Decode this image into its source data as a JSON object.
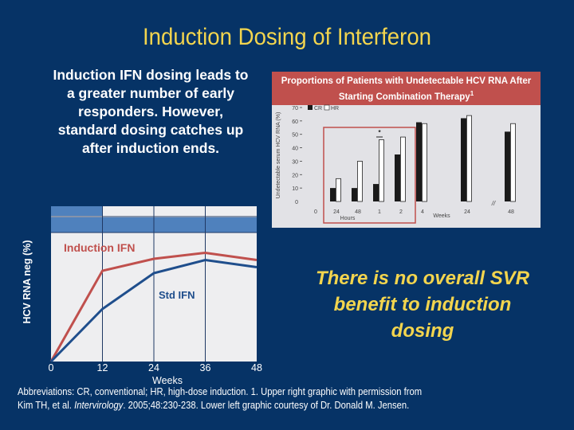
{
  "slide": {
    "title": "Induction Dosing of Interferon",
    "left_text": "Induction IFN dosing leads to a greater number of early responders. However, standard dosing catches up after induction ends.",
    "conclusion": "There is no overall SVR benefit to induction dosing",
    "footnote_line1": "Abbreviations: CR, conventional; HR, high-dose induction. 1. Upper right graphic with permission from",
    "footnote_line2_pre": "Kim TH, et al. ",
    "footnote_line2_journal": "Intervirology",
    "footnote_line2_post": ". 2005;48:230-238. Lower left graphic courtesy of Dr. Donald M. Jensen.",
    "colors": {
      "background": "#063366",
      "title": "#f3d54e",
      "induction_line": "#c0504d",
      "std_line": "#1f4e8c",
      "header_band": "#4f81bd"
    }
  },
  "chart_data": [
    {
      "type": "bar",
      "title": "Proportions of Patients with Undetectable HCV RNA After Starting Combination Therapy",
      "title_superscript": "1",
      "ylabel": "Undetectable serum HCV RNA (%)",
      "xlabel_groups": [
        "Hours",
        "Weeks"
      ],
      "ylim": [
        0,
        70
      ],
      "yticks": [
        0,
        10,
        20,
        30,
        40,
        50,
        60,
        70
      ],
      "categories": [
        "0",
        "24",
        "48",
        "1",
        "2",
        "4",
        "24",
        "48"
      ],
      "category_units": [
        "",
        "Hours",
        "Hours",
        "Weeks",
        "Weeks",
        "Weeks",
        "Weeks",
        "Weeks"
      ],
      "legend": [
        "CR",
        "HR"
      ],
      "series": [
        {
          "name": "CR",
          "color": "#1a1a1a",
          "values": [
            null,
            10,
            10,
            13,
            35,
            59,
            62,
            52
          ]
        },
        {
          "name": "HR",
          "color": "#ffffff",
          "values": [
            null,
            17,
            30,
            46,
            48,
            58,
            64,
            58
          ]
        }
      ],
      "annotations": [
        "* significant at week 1",
        "highlight box around 24h to week 2",
        "axis break // before week 48"
      ]
    },
    {
      "type": "line",
      "title": "",
      "xlabel": "Weeks",
      "ylabel": "HCV RNA neg (%)",
      "x": [
        0,
        12,
        24,
        36,
        48
      ],
      "xticks": [
        "0",
        "12",
        "24",
        "36",
        "48"
      ],
      "series": [
        {
          "name": "Induction IFN",
          "color": "#c0504d",
          "values": [
            0,
            76,
            86,
            91,
            85
          ]
        },
        {
          "name": "Std IFN",
          "color": "#1f4e8c",
          "values": [
            0,
            44,
            74,
            85,
            79
          ]
        }
      ],
      "grid": "vertical lines at 12, 24, 36",
      "header_bars": [
        "induction period 0-12 weeks",
        "treatment 0-48 weeks"
      ]
    }
  ]
}
